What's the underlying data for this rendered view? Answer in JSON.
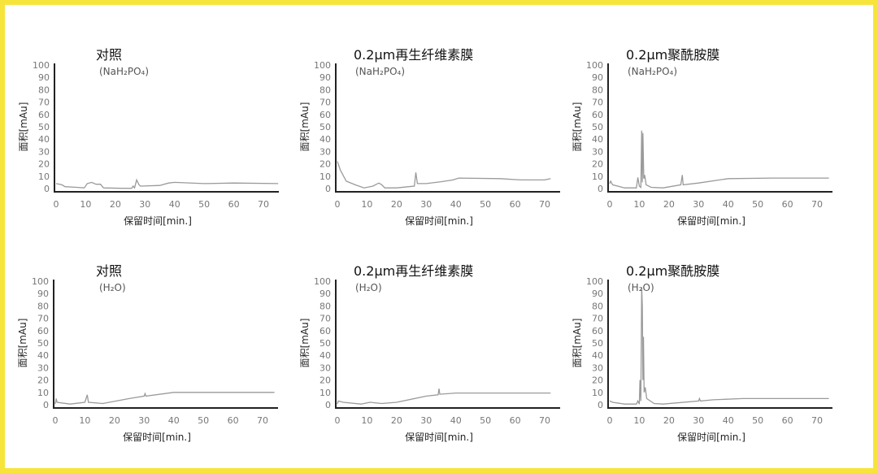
{
  "chart_data": [
    {
      "type": "line",
      "title": "对照",
      "subtitle": "(NaH₂PO₄)",
      "xlabel": "保留时间[min.]",
      "ylabel": "面积[mAu]",
      "xlim": [
        0,
        75
      ],
      "ylim": [
        0,
        100
      ],
      "xticks": [
        0,
        10,
        20,
        30,
        40,
        50,
        60,
        70
      ],
      "yticks": [
        0,
        10,
        20,
        30,
        40,
        50,
        60,
        70,
        80,
        90,
        100
      ],
      "grid": false,
      "series": [
        {
          "points": [
            [
              0,
              4
            ],
            [
              2,
              3
            ],
            [
              3,
              1.5
            ],
            [
              7,
              1
            ],
            [
              9.5,
              0.5
            ],
            [
              10.5,
              4
            ],
            [
              12,
              5
            ],
            [
              13.5,
              3.5
            ],
            [
              15,
              3.5
            ],
            [
              16,
              0.5
            ],
            [
              22,
              0.2
            ],
            [
              25.5,
              0.2
            ],
            [
              26,
              2
            ],
            [
              26.5,
              0.5
            ],
            [
              27.2,
              7
            ],
            [
              28,
              3
            ],
            [
              28.5,
              2
            ],
            [
              35,
              2.5
            ],
            [
              38,
              4.5
            ],
            [
              40,
              5
            ],
            [
              50,
              4
            ],
            [
              60,
              4.5
            ],
            [
              75,
              4
            ]
          ]
        }
      ]
    },
    {
      "type": "line",
      "title": "0.2μm再生纤维素膜",
      "subtitle": "(NaH₂PO₄)",
      "xlabel": "保留时间[min.]",
      "ylabel": "面积[mAu]",
      "xlim": [
        0,
        75
      ],
      "ylim": [
        0,
        100
      ],
      "xticks": [
        0,
        10,
        20,
        30,
        40,
        50,
        60,
        70
      ],
      "yticks": [
        0,
        10,
        20,
        30,
        40,
        50,
        60,
        70,
        80,
        90,
        100
      ],
      "grid": false,
      "series": [
        {
          "points": [
            [
              0,
              22
            ],
            [
              1,
              15
            ],
            [
              3,
              6
            ],
            [
              6,
              3
            ],
            [
              9,
              0.5
            ],
            [
              12,
              2
            ],
            [
              14,
              4.5
            ],
            [
              15,
              3
            ],
            [
              16,
              0.5
            ],
            [
              20,
              0.5
            ],
            [
              26,
              2
            ],
            [
              26.5,
              13
            ],
            [
              27,
              4
            ],
            [
              30,
              4
            ],
            [
              35,
              5.5
            ],
            [
              39,
              7
            ],
            [
              41,
              8.5
            ],
            [
              55,
              8
            ],
            [
              62,
              7
            ],
            [
              70,
              7
            ],
            [
              72,
              8
            ]
          ]
        }
      ]
    },
    {
      "type": "line",
      "title": "0.2μm聚酰胺膜",
      "subtitle": "(NaH₂PO₄)",
      "xlabel": "保留时间[min.]",
      "ylabel": "面积[mAu]",
      "xlim": [
        0,
        75
      ],
      "ylim": [
        0,
        100
      ],
      "xticks": [
        0,
        10,
        20,
        30,
        40,
        50,
        60,
        70
      ],
      "yticks": [
        0,
        10,
        20,
        30,
        40,
        50,
        60,
        70,
        80,
        90,
        100
      ],
      "grid": false,
      "series": [
        {
          "points": [
            [
              0,
              4
            ],
            [
              0.3,
              6
            ],
            [
              1,
              3
            ],
            [
              5,
              0.5
            ],
            [
              9,
              0.5
            ],
            [
              9.5,
              9
            ],
            [
              10,
              2
            ],
            [
              10.5,
              1
            ],
            [
              10.8,
              47
            ],
            [
              11,
              5
            ],
            [
              11.2,
              45
            ],
            [
              11.5,
              8
            ],
            [
              11.8,
              11
            ],
            [
              12.3,
              3
            ],
            [
              14,
              1
            ],
            [
              18,
              0.5
            ],
            [
              24,
              3
            ],
            [
              24.5,
              11
            ],
            [
              24.8,
              3
            ],
            [
              30,
              4.5
            ],
            [
              40,
              8
            ],
            [
              55,
              8.5
            ],
            [
              74,
              8.5
            ]
          ]
        }
      ]
    },
    {
      "type": "line",
      "title": "对照",
      "subtitle": "(H₂O)",
      "xlabel": "保留时间[min.]",
      "ylabel": "面积[mAu]",
      "xlim": [
        0,
        75
      ],
      "ylim": [
        0,
        100
      ],
      "xticks": [
        0,
        10,
        20,
        30,
        40,
        50,
        60,
        70
      ],
      "yticks": [
        0,
        10,
        20,
        30,
        40,
        50,
        60,
        70,
        80,
        90,
        100
      ],
      "grid": false,
      "series": [
        {
          "points": [
            [
              0,
              0.5
            ],
            [
              0.3,
              5
            ],
            [
              0.6,
              2
            ],
            [
              5,
              0.5
            ],
            [
              10,
              2
            ],
            [
              10.8,
              8
            ],
            [
              11.2,
              2
            ],
            [
              16,
              1
            ],
            [
              25,
              5
            ],
            [
              30,
              7
            ],
            [
              30.3,
              9
            ],
            [
              30.6,
              7
            ],
            [
              40,
              10
            ],
            [
              74,
              10
            ]
          ]
        }
      ]
    },
    {
      "type": "line",
      "title": "0.2μm再生纤维素膜",
      "subtitle": "(H₂O)",
      "xlabel": "保留时间[min.]",
      "ylabel": "面积[mAu]",
      "xlim": [
        0,
        75
      ],
      "ylim": [
        0,
        100
      ],
      "xticks": [
        0,
        10,
        20,
        30,
        40,
        50,
        60,
        70
      ],
      "yticks": [
        0,
        10,
        20,
        30,
        40,
        50,
        60,
        70,
        80,
        90,
        100
      ],
      "grid": false,
      "series": [
        {
          "points": [
            [
              0,
              0.5
            ],
            [
              0.3,
              3
            ],
            [
              2,
              2
            ],
            [
              8,
              0.5
            ],
            [
              10,
              1.5
            ],
            [
              11,
              2
            ],
            [
              15,
              1
            ],
            [
              20,
              2
            ],
            [
              30,
              7
            ],
            [
              34,
              8
            ],
            [
              34.3,
              13
            ],
            [
              34.6,
              8.5
            ],
            [
              40,
              9.5
            ],
            [
              72,
              9.5
            ]
          ]
        }
      ]
    },
    {
      "type": "line",
      "title": "0.2μm聚酰胺膜",
      "subtitle": "(H₂O)",
      "xlabel": "保留时间[min.]",
      "ylabel": "面积[mAu]",
      "xlim": [
        0,
        75
      ],
      "ylim": [
        0,
        100
      ],
      "xticks": [
        0,
        10,
        20,
        30,
        40,
        50,
        60,
        70
      ],
      "yticks": [
        0,
        10,
        20,
        30,
        40,
        50,
        60,
        70,
        80,
        90,
        100
      ],
      "grid": false,
      "series": [
        {
          "points": [
            [
              0,
              3
            ],
            [
              1,
              2
            ],
            [
              5,
              0.5
            ],
            [
              9,
              0.5
            ],
            [
              9.5,
              3
            ],
            [
              10,
              0.5
            ],
            [
              10.2,
              20
            ],
            [
              10.5,
              3
            ],
            [
              10.8,
              95
            ],
            [
              11,
              80
            ],
            [
              11.2,
              20
            ],
            [
              11.4,
              55
            ],
            [
              11.6,
              10
            ],
            [
              12,
              14
            ],
            [
              12.5,
              5
            ],
            [
              15,
              1
            ],
            [
              18,
              0.5
            ],
            [
              30,
              3
            ],
            [
              30.3,
              5
            ],
            [
              30.6,
              3
            ],
            [
              35,
              4
            ],
            [
              45,
              5
            ],
            [
              74,
              5
            ]
          ]
        }
      ]
    }
  ],
  "colors": {
    "frame": "#f7e43a",
    "trace": "#9a9a9a",
    "axis": "#222222"
  }
}
